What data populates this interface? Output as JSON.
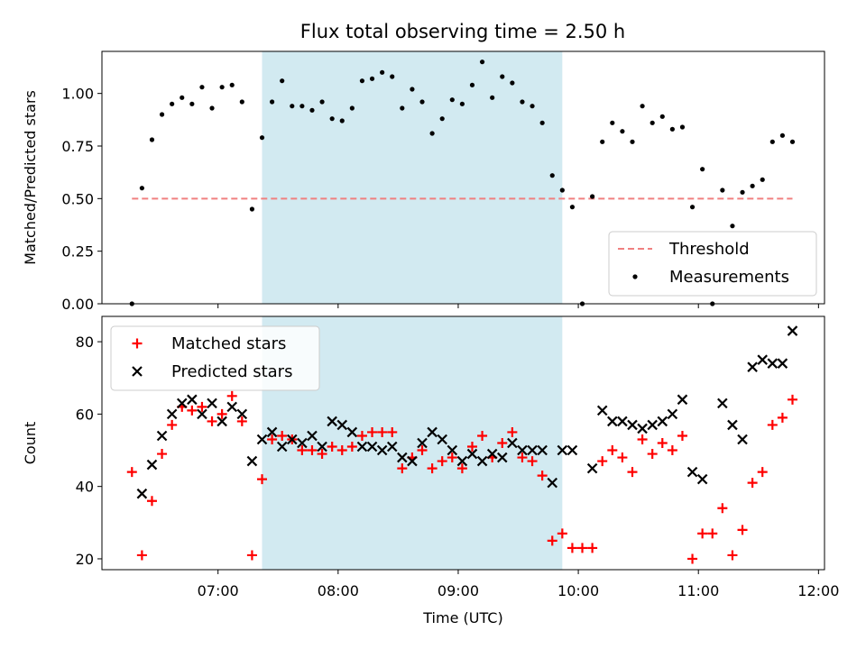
{
  "chart_data": [
    {
      "type": "scatter",
      "title": "Flux total observing time = 2.50 h",
      "ylabel": "Matched/Predicted stars",
      "xlim": [
        "06:02",
        "12:03"
      ],
      "ylim": [
        0,
        1.2
      ],
      "yticks": [
        "0.00",
        "0.25",
        "0.50",
        "0.75",
        "1.00"
      ],
      "highlight_span": {
        "start": "07:22",
        "end": "09:52",
        "color": "#add8e6"
      },
      "threshold": {
        "name": "Threshold",
        "value": 0.5,
        "start": "06:17",
        "end": "11:47",
        "color": "#f08080",
        "style": "dashed"
      },
      "legend": {
        "position": "lower right",
        "entries": [
          "Threshold",
          "Measurements"
        ]
      },
      "series": [
        {
          "name": "Measurements",
          "color": "#000000",
          "marker": "dot",
          "points": [
            [
              "06:17",
              0.0
            ],
            [
              "06:22",
              0.55
            ],
            [
              "06:27",
              0.78
            ],
            [
              "06:32",
              0.9
            ],
            [
              "06:37",
              0.95
            ],
            [
              "06:42",
              0.98
            ],
            [
              "06:47",
              0.95
            ],
            [
              "06:52",
              1.03
            ],
            [
              "06:57",
              0.93
            ],
            [
              "07:02",
              1.03
            ],
            [
              "07:07",
              1.04
            ],
            [
              "07:12",
              0.96
            ],
            [
              "07:17",
              0.45
            ],
            [
              "07:22",
              0.79
            ],
            [
              "07:27",
              0.96
            ],
            [
              "07:32",
              1.06
            ],
            [
              "07:37",
              0.94
            ],
            [
              "07:42",
              0.94
            ],
            [
              "07:47",
              0.92
            ],
            [
              "07:52",
              0.96
            ],
            [
              "07:57",
              0.88
            ],
            [
              "08:02",
              0.87
            ],
            [
              "08:07",
              0.93
            ],
            [
              "08:12",
              1.06
            ],
            [
              "08:17",
              1.07
            ],
            [
              "08:22",
              1.1
            ],
            [
              "08:27",
              1.08
            ],
            [
              "08:32",
              0.93
            ],
            [
              "08:37",
              1.02
            ],
            [
              "08:42",
              0.96
            ],
            [
              "08:47",
              0.81
            ],
            [
              "08:52",
              0.88
            ],
            [
              "08:57",
              0.97
            ],
            [
              "09:02",
              0.95
            ],
            [
              "09:07",
              1.04
            ],
            [
              "09:12",
              1.15
            ],
            [
              "09:17",
              0.98
            ],
            [
              "09:22",
              1.08
            ],
            [
              "09:27",
              1.05
            ],
            [
              "09:32",
              0.96
            ],
            [
              "09:37",
              0.94
            ],
            [
              "09:42",
              0.86
            ],
            [
              "09:47",
              0.61
            ],
            [
              "09:52",
              0.54
            ],
            [
              "09:57",
              0.46
            ],
            [
              "10:02",
              0.0
            ],
            [
              "10:07",
              0.51
            ],
            [
              "10:12",
              0.77
            ],
            [
              "10:17",
              0.86
            ],
            [
              "10:22",
              0.82
            ],
            [
              "10:27",
              0.77
            ],
            [
              "10:32",
              0.94
            ],
            [
              "10:37",
              0.86
            ],
            [
              "10:42",
              0.89
            ],
            [
              "10:47",
              0.83
            ],
            [
              "10:52",
              0.84
            ],
            [
              "10:57",
              0.46
            ],
            [
              "11:02",
              0.64
            ],
            [
              "11:07",
              0.0
            ],
            [
              "11:12",
              0.54
            ],
            [
              "11:17",
              0.37
            ],
            [
              "11:22",
              0.53
            ],
            [
              "11:27",
              0.56
            ],
            [
              "11:32",
              0.59
            ],
            [
              "11:37",
              0.77
            ],
            [
              "11:42",
              0.8
            ],
            [
              "11:47",
              0.77
            ]
          ]
        }
      ]
    },
    {
      "type": "scatter",
      "xlabel": "Time (UTC)",
      "ylabel": "Count",
      "xlim": [
        "06:02",
        "12:03"
      ],
      "ylim": [
        17,
        87
      ],
      "xticks": [
        "07:00",
        "08:00",
        "09:00",
        "10:00",
        "11:00",
        "12:00"
      ],
      "yticks": [
        "20",
        "40",
        "60",
        "80"
      ],
      "highlight_span": {
        "start": "07:22",
        "end": "09:52",
        "color": "#add8e6"
      },
      "legend": {
        "position": "upper left",
        "entries": [
          "Matched stars",
          "Predicted stars"
        ]
      },
      "series": [
        {
          "name": "Matched stars",
          "color": "#ff0000",
          "marker": "plus",
          "points": [
            [
              "06:17",
              44
            ],
            [
              "06:22",
              21
            ],
            [
              "06:27",
              36
            ],
            [
              "06:32",
              49
            ],
            [
              "06:37",
              57
            ],
            [
              "06:42",
              62
            ],
            [
              "06:47",
              61
            ],
            [
              "06:52",
              62
            ],
            [
              "06:57",
              58
            ],
            [
              "07:02",
              60
            ],
            [
              "07:07",
              65
            ],
            [
              "07:12",
              58
            ],
            [
              "07:17",
              21
            ],
            [
              "07:22",
              42
            ],
            [
              "07:27",
              53
            ],
            [
              "07:32",
              54
            ],
            [
              "07:37",
              53
            ],
            [
              "07:42",
              50
            ],
            [
              "07:47",
              50
            ],
            [
              "07:52",
              49
            ],
            [
              "07:57",
              51
            ],
            [
              "08:02",
              50
            ],
            [
              "08:07",
              51
            ],
            [
              "08:12",
              54
            ],
            [
              "08:17",
              55
            ],
            [
              "08:22",
              55
            ],
            [
              "08:27",
              55
            ],
            [
              "08:32",
              45
            ],
            [
              "08:37",
              48
            ],
            [
              "08:42",
              50
            ],
            [
              "08:47",
              45
            ],
            [
              "08:52",
              47
            ],
            [
              "08:57",
              48
            ],
            [
              "09:02",
              45
            ],
            [
              "09:07",
              51
            ],
            [
              "09:12",
              54
            ],
            [
              "09:17",
              48
            ],
            [
              "09:22",
              52
            ],
            [
              "09:27",
              55
            ],
            [
              "09:32",
              48
            ],
            [
              "09:37",
              47
            ],
            [
              "09:42",
              43
            ],
            [
              "09:47",
              25
            ],
            [
              "09:52",
              27
            ],
            [
              "09:57",
              23
            ],
            [
              "10:02",
              23
            ],
            [
              "10:07",
              23
            ],
            [
              "10:12",
              47
            ],
            [
              "10:17",
              50
            ],
            [
              "10:22",
              48
            ],
            [
              "10:27",
              44
            ],
            [
              "10:32",
              53
            ],
            [
              "10:37",
              49
            ],
            [
              "10:42",
              52
            ],
            [
              "10:47",
              50
            ],
            [
              "10:52",
              54
            ],
            [
              "10:57",
              20
            ],
            [
              "11:02",
              27
            ],
            [
              "11:07",
              27
            ],
            [
              "11:12",
              34
            ],
            [
              "11:17",
              21
            ],
            [
              "11:22",
              28
            ],
            [
              "11:27",
              41
            ],
            [
              "11:32",
              44
            ],
            [
              "11:37",
              57
            ],
            [
              "11:42",
              59
            ],
            [
              "11:47",
              64
            ]
          ]
        },
        {
          "name": "Predicted stars",
          "color": "#000000",
          "marker": "cross",
          "points": [
            [
              "06:22",
              38
            ],
            [
              "06:27",
              46
            ],
            [
              "06:32",
              54
            ],
            [
              "06:37",
              60
            ],
            [
              "06:42",
              63
            ],
            [
              "06:47",
              64
            ],
            [
              "06:52",
              60
            ],
            [
              "06:57",
              63
            ],
            [
              "07:02",
              58
            ],
            [
              "07:07",
              62
            ],
            [
              "07:12",
              60
            ],
            [
              "07:17",
              47
            ],
            [
              "07:22",
              53
            ],
            [
              "07:27",
              55
            ],
            [
              "07:32",
              51
            ],
            [
              "07:37",
              53
            ],
            [
              "07:42",
              52
            ],
            [
              "07:47",
              54
            ],
            [
              "07:52",
              51
            ],
            [
              "07:57",
              58
            ],
            [
              "08:02",
              57
            ],
            [
              "08:07",
              55
            ],
            [
              "08:12",
              51
            ],
            [
              "08:17",
              51
            ],
            [
              "08:22",
              50
            ],
            [
              "08:27",
              51
            ],
            [
              "08:32",
              48
            ],
            [
              "08:37",
              47
            ],
            [
              "08:42",
              52
            ],
            [
              "08:47",
              55
            ],
            [
              "08:52",
              53
            ],
            [
              "08:57",
              50
            ],
            [
              "09:02",
              47
            ],
            [
              "09:07",
              49
            ],
            [
              "09:12",
              47
            ],
            [
              "09:17",
              49
            ],
            [
              "09:22",
              48
            ],
            [
              "09:27",
              52
            ],
            [
              "09:32",
              50
            ],
            [
              "09:37",
              50
            ],
            [
              "09:42",
              50
            ],
            [
              "09:47",
              41
            ],
            [
              "09:52",
              50
            ],
            [
              "09:57",
              50
            ],
            [
              "10:07",
              45
            ],
            [
              "10:12",
              61
            ],
            [
              "10:17",
              58
            ],
            [
              "10:22",
              58
            ],
            [
              "10:27",
              57
            ],
            [
              "10:32",
              56
            ],
            [
              "10:37",
              57
            ],
            [
              "10:42",
              58
            ],
            [
              "10:47",
              60
            ],
            [
              "10:52",
              64
            ],
            [
              "10:57",
              44
            ],
            [
              "11:02",
              42
            ],
            [
              "11:12",
              63
            ],
            [
              "11:17",
              57
            ],
            [
              "11:22",
              53
            ],
            [
              "11:27",
              73
            ],
            [
              "11:32",
              75
            ],
            [
              "11:37",
              74
            ],
            [
              "11:42",
              74
            ],
            [
              "11:47",
              83
            ]
          ]
        }
      ]
    }
  ]
}
